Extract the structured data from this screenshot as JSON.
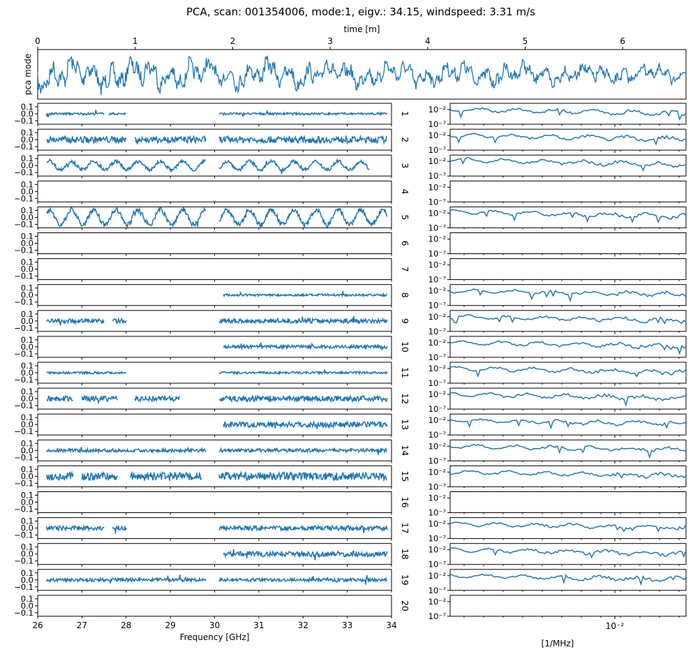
{
  "chart_data": {
    "type": "line",
    "title": "PCA, scan: 001354006, mode:1, eigv.: 34.15, windspeed: 3.31 m/s",
    "colors": {
      "series": "#1f77b4",
      "axes": "#000000",
      "background": "#ffffff"
    },
    "top_panel": {
      "ylabel": "pca mode",
      "xlabel": "time [m]",
      "xaxis_position": "top",
      "xlim": [
        0,
        6.65
      ],
      "xticks": [
        "0",
        "1",
        "2",
        "3",
        "4",
        "5",
        "6"
      ],
      "ylim": [
        -1,
        1
      ],
      "series_name": "pca mode",
      "description": "noisy oscillating time series around zero"
    },
    "left_column": {
      "xlabel": "Frequency [GHz]",
      "xlim": [
        26,
        34
      ],
      "xticks": [
        "26",
        "27",
        "28",
        "29",
        "30",
        "31",
        "32",
        "33",
        "34"
      ],
      "ylim": [
        -0.15,
        0.15
      ],
      "yticks": [
        "0.1",
        "0.0",
        "−0.1"
      ]
    },
    "right_column": {
      "xlabel": "[1/MHz]",
      "xscale": "log",
      "xticks": [
        "10⁻²"
      ],
      "yscale": "log",
      "ylim": [
        1e-07,
        1
      ],
      "yticks": [
        "10⁻²",
        "10⁻⁷"
      ]
    },
    "channels": [
      {
        "label": "1",
        "amp": 0.02,
        "osc": 0.0,
        "segments": [
          [
            26.2,
            27.5
          ],
          [
            27.6,
            28.0
          ],
          [
            30.1,
            33.9
          ]
        ],
        "spectrum": "flat"
      },
      {
        "label": "2",
        "amp": 0.06,
        "osc": 0.0,
        "segments": [
          [
            26.2,
            28.0
          ],
          [
            28.2,
            29.8
          ],
          [
            30.1,
            33.9
          ]
        ],
        "spectrum": "flat"
      },
      {
        "label": "3",
        "amp": 0.08,
        "osc": 0.75,
        "segments": [
          [
            26.2,
            29.8
          ],
          [
            30.1,
            33.5
          ]
        ],
        "spectrum": "peaked"
      },
      {
        "label": "4",
        "amp": 0,
        "osc": 0,
        "segments": [],
        "spectrum": "none"
      },
      {
        "label": "5",
        "amp": 0.12,
        "osc": 0.9,
        "segments": [
          [
            26.2,
            29.8
          ],
          [
            30.1,
            33.9
          ]
        ],
        "spectrum": "peaked"
      },
      {
        "label": "6",
        "amp": 0,
        "osc": 0,
        "segments": [],
        "spectrum": "none"
      },
      {
        "label": "7",
        "amp": 0,
        "osc": 0,
        "segments": [],
        "spectrum": "none"
      },
      {
        "label": "8",
        "amp": 0.02,
        "osc": 0.0,
        "segments": [
          [
            30.2,
            33.9
          ]
        ],
        "spectrum": "flat"
      },
      {
        "label": "9",
        "amp": 0.04,
        "osc": 0.0,
        "segments": [
          [
            26.2,
            27.5
          ],
          [
            27.7,
            28.0
          ],
          [
            30.1,
            33.9
          ]
        ],
        "spectrum": "flat"
      },
      {
        "label": "10",
        "amp": 0.03,
        "osc": 0.0,
        "segments": [
          [
            30.2,
            33.9
          ]
        ],
        "spectrum": "flat"
      },
      {
        "label": "11",
        "amp": 0.02,
        "osc": 0.0,
        "segments": [
          [
            26.2,
            28.0
          ],
          [
            30.1,
            33.9
          ]
        ],
        "spectrum": "flat"
      },
      {
        "label": "12",
        "amp": 0.05,
        "osc": 0.0,
        "segments": [
          [
            26.2,
            26.8
          ],
          [
            27.0,
            27.8
          ],
          [
            28.2,
            29.2
          ],
          [
            30.1,
            33.9
          ]
        ],
        "spectrum": "flat"
      },
      {
        "label": "13",
        "amp": 0.05,
        "osc": 0.0,
        "segments": [
          [
            30.2,
            33.9
          ]
        ],
        "spectrum": "flat"
      },
      {
        "label": "14",
        "amp": 0.03,
        "osc": 0.0,
        "segments": [
          [
            26.2,
            29.8
          ],
          [
            30.1,
            33.9
          ]
        ],
        "spectrum": "flat"
      },
      {
        "label": "15",
        "amp": 0.07,
        "osc": 0.0,
        "segments": [
          [
            26.2,
            26.8
          ],
          [
            27.0,
            27.8
          ],
          [
            28.1,
            29.7
          ],
          [
            30.1,
            33.9
          ]
        ],
        "spectrum": "flat"
      },
      {
        "label": "16",
        "amp": 0,
        "osc": 0,
        "segments": [],
        "spectrum": "none"
      },
      {
        "label": "17",
        "amp": 0.04,
        "osc": 0.0,
        "segments": [
          [
            26.2,
            27.5
          ],
          [
            27.7,
            28.0
          ],
          [
            30.1,
            33.9
          ]
        ],
        "spectrum": "flat"
      },
      {
        "label": "18",
        "amp": 0.05,
        "osc": 0.0,
        "segments": [
          [
            30.2,
            33.9
          ]
        ],
        "spectrum": "flat"
      },
      {
        "label": "19",
        "amp": 0.03,
        "osc": 0.0,
        "segments": [
          [
            26.2,
            29.8
          ],
          [
            30.1,
            33.9
          ]
        ],
        "spectrum": "flat"
      },
      {
        "label": "20",
        "amp": 0,
        "osc": 0,
        "segments": [],
        "spectrum": "none"
      }
    ]
  }
}
